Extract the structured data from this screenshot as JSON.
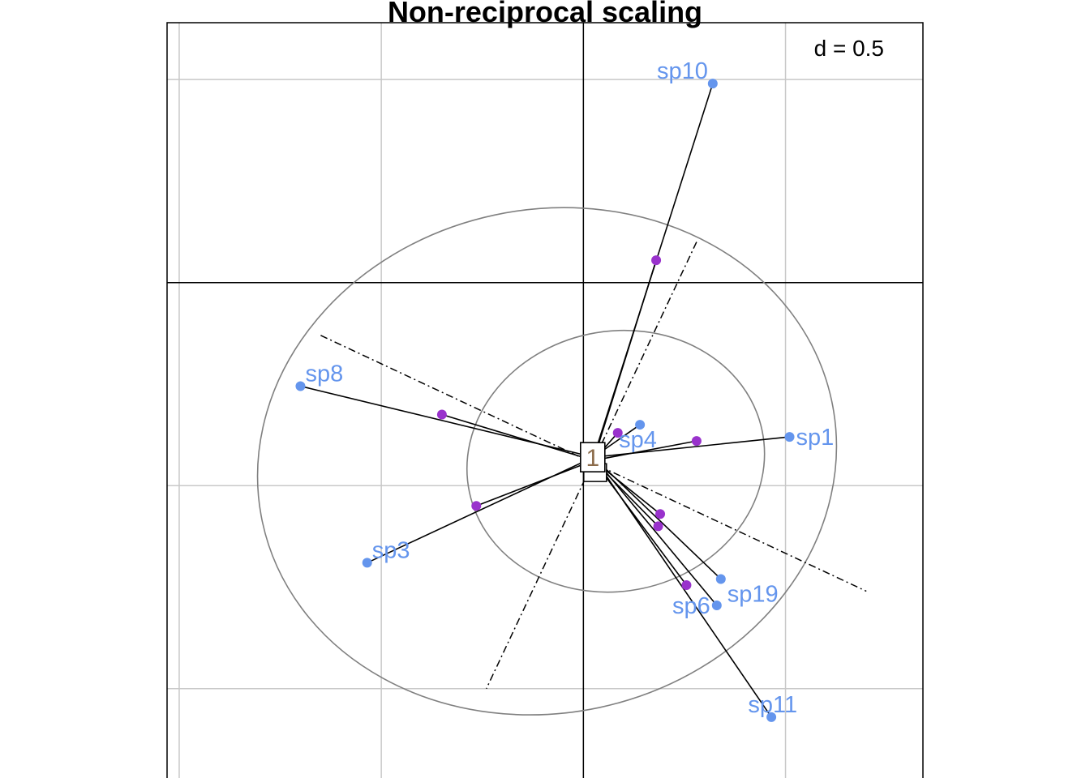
{
  "chart_data": {
    "type": "scatter",
    "title": "Non-reciprocal scaling",
    "grid_label": "d = 0.5",
    "grid_step": 0.5,
    "grid": true,
    "center": {
      "x": 0.025,
      "y": -0.43,
      "label": "1"
    },
    "ellipses": [
      {
        "cx": 0.08,
        "cy": -0.44,
        "rx": 0.37,
        "ry": 0.32,
        "angle": -12
      },
      {
        "cx": -0.09,
        "cy": -0.44,
        "rx": 0.72,
        "ry": 0.62,
        "angle": -12
      }
    ],
    "axes_lines": [
      {
        "x1": 0.28,
        "y1": 0.1,
        "x2": -0.24,
        "y2": -1.0
      },
      {
        "x1": -0.65,
        "y1": -0.13,
        "x2": 0.7,
        "y2": -0.76
      }
    ],
    "species_color": "#6495ED",
    "species": [
      {
        "label": "sp10",
        "x": 0.32,
        "y": 0.49
      },
      {
        "label": "sp8",
        "x": -0.7,
        "y": -0.255
      },
      {
        "label": "sp1",
        "x": 0.51,
        "y": -0.38
      },
      {
        "label": "sp4",
        "x": 0.14,
        "y": -0.35
      },
      {
        "label": "sp3",
        "x": -0.535,
        "y": -0.69
      },
      {
        "label": "sp19",
        "x": 0.34,
        "y": -0.73
      },
      {
        "label": "sp6",
        "x": 0.33,
        "y": -0.795
      },
      {
        "label": "sp11",
        "x": 0.465,
        "y": -1.07
      }
    ],
    "site_color": "#9932CC",
    "sites": [
      {
        "x": 0.18,
        "y": 0.055
      },
      {
        "x": -0.35,
        "y": -0.325
      },
      {
        "x": 0.28,
        "y": -0.39
      },
      {
        "x": 0.085,
        "y": -0.37
      },
      {
        "x": -0.265,
        "y": -0.55
      },
      {
        "x": 0.19,
        "y": -0.57
      },
      {
        "x": 0.185,
        "y": -0.6
      },
      {
        "x": 0.255,
        "y": -0.745
      }
    ],
    "xlim": [
      -1.03,
      0.84
    ],
    "ylim": [
      -1.22,
      0.64
    ]
  }
}
